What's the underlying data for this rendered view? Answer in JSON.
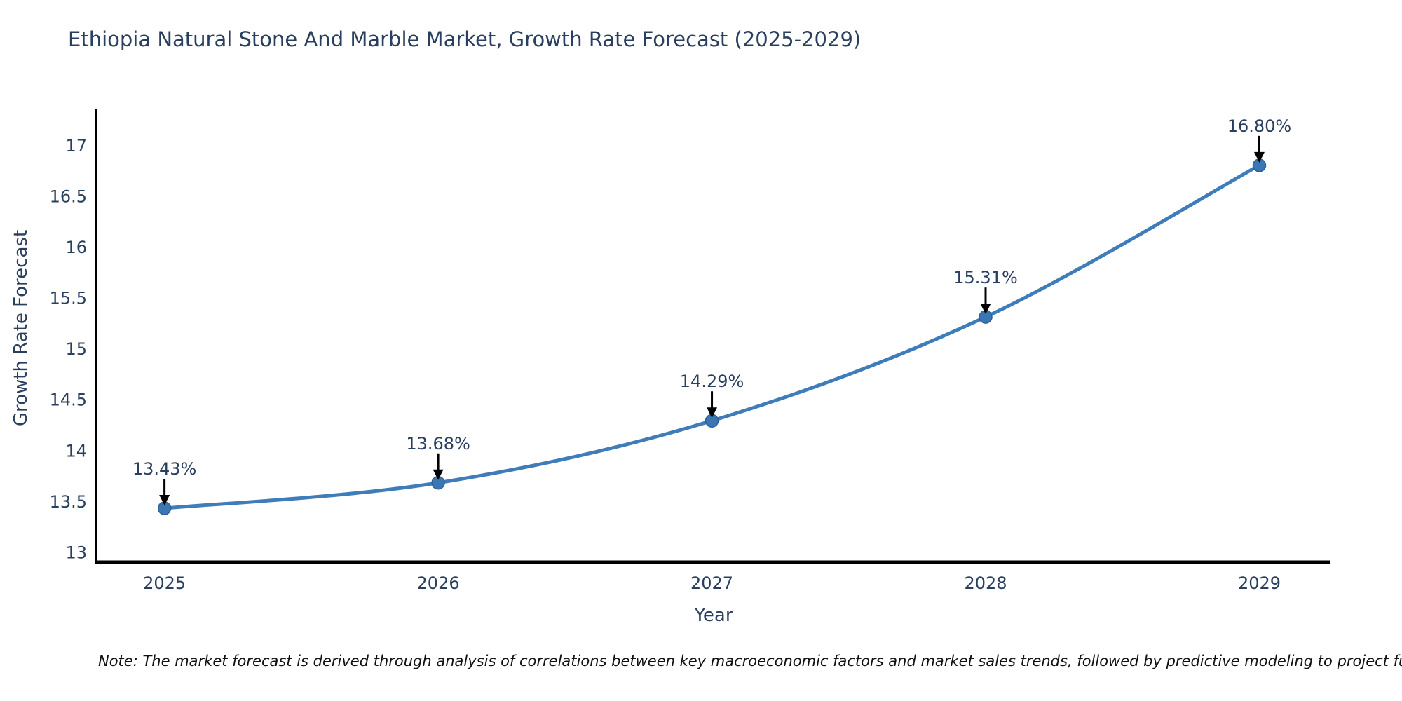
{
  "footnote": {
    "text": "Note: The market forecast is derived through analysis of correlations between key macroeconomic factors and market sales trends, followed by predictive modeling to project future sales."
  },
  "chart_data": {
    "type": "line",
    "title": "Ethiopia Natural Stone And Marble Market, Growth Rate Forecast (2025-2029)",
    "xlabel": "Year",
    "ylabel": "Growth Rate Forecast",
    "x": [
      2025,
      2026,
      2027,
      2028,
      2029
    ],
    "series": [
      {
        "name": "Growth Rate Forecast",
        "values": [
          13.43,
          13.68,
          14.29,
          15.31,
          16.8
        ]
      }
    ],
    "point_labels": [
      "13.43%",
      "13.68%",
      "14.29%",
      "15.31%",
      "16.80%"
    ],
    "yticks": [
      13,
      13.5,
      14,
      14.5,
      15,
      15.5,
      16,
      16.5,
      17
    ],
    "ylim": [
      12.9,
      17.35
    ],
    "xlim": [
      2024.75,
      2029.26
    ],
    "grid": false,
    "legend_position": "none",
    "line_shape": "spline",
    "marker": "circle",
    "annotation_style": "down-arrow",
    "colors": {
      "line": "#3f7cba",
      "marker": "#3a76b4",
      "marker_edge": "#2e6096",
      "axis": "#000000",
      "text": "#2a3f5f",
      "arrow": "#000000",
      "note": "#111111",
      "background": "#ffffff"
    }
  }
}
